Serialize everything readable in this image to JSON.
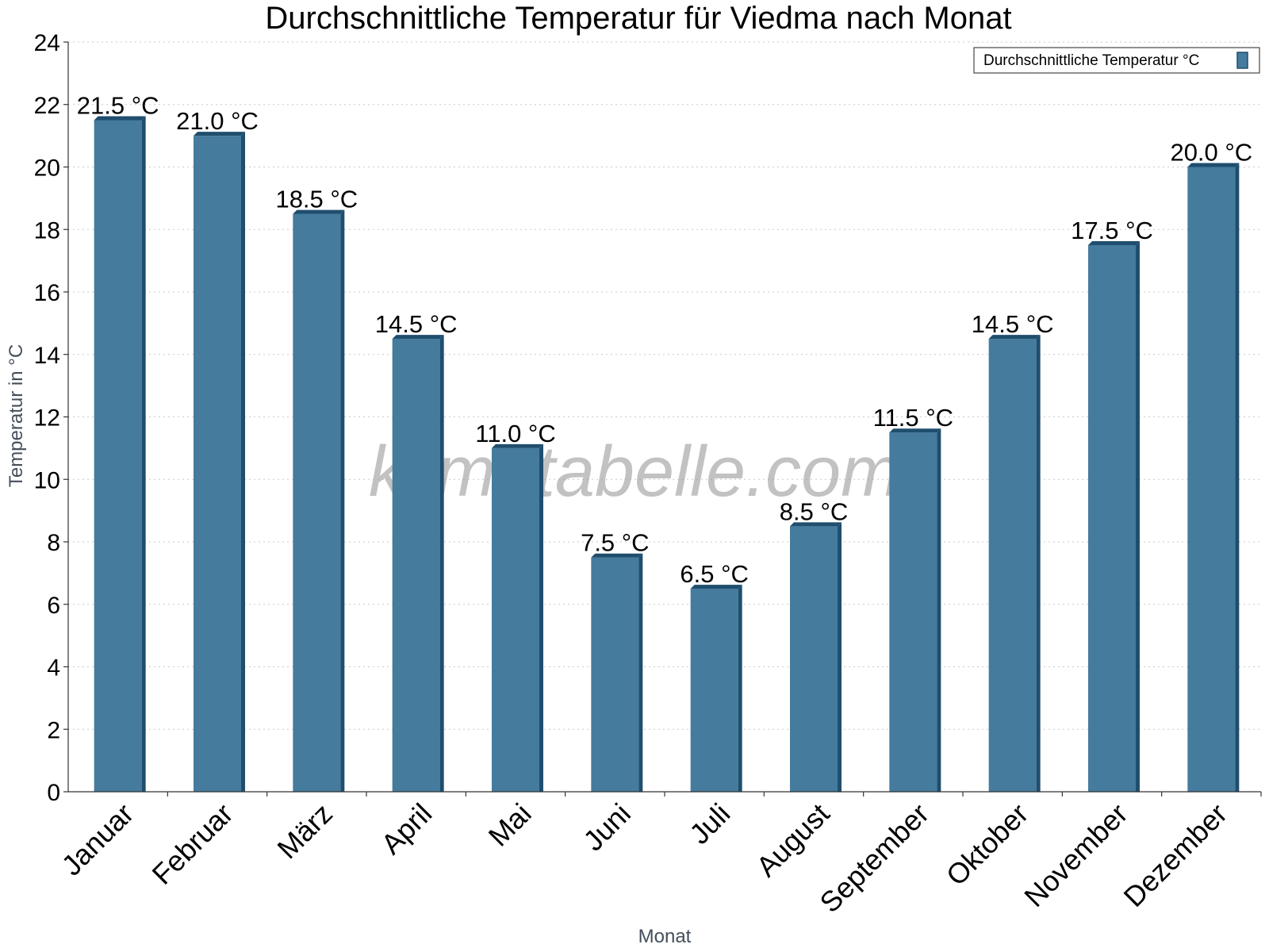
{
  "chart_data": {
    "type": "bar",
    "title": "Durchschnittliche Temperatur für Viedma nach Monat",
    "xlabel": "Monat",
    "ylabel": "Temperatur in °C",
    "categories": [
      "Januar",
      "Februar",
      "März",
      "April",
      "Mai",
      "Juni",
      "Juli",
      "August",
      "September",
      "Oktober",
      "November",
      "Dezember"
    ],
    "series": [
      {
        "name": "Durchschnittliche Temperatur °C",
        "values": [
          21.5,
          21.0,
          18.5,
          14.5,
          11.0,
          7.5,
          6.5,
          8.5,
          11.5,
          14.5,
          17.5,
          20.0
        ],
        "labels": [
          "21.5 °C",
          "21.0 °C",
          "18.5 °C",
          "14.5 °C",
          "11.0 °C",
          "7.5 °C",
          "6.5 °C",
          "8.5 °C",
          "11.5 °C",
          "14.5 °C",
          "17.5 °C",
          "20.0 °C"
        ]
      }
    ],
    "ylim": [
      0,
      24
    ],
    "yticks": [
      0,
      2,
      4,
      6,
      8,
      10,
      12,
      14,
      16,
      18,
      20,
      22,
      24
    ],
    "grid": true,
    "legend": "top-right",
    "colors": {
      "bar": "#457b9d",
      "bar_edge": "#1f4e6e"
    }
  },
  "watermark": "klimatabelle.com"
}
